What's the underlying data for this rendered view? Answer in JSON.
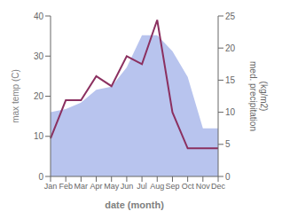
{
  "chart_data": {
    "type": "line",
    "categories": [
      "Jan",
      "Feb",
      "Mar",
      "Apr",
      "May",
      "Jun",
      "Jul",
      "Aug",
      "Sep",
      "Oct",
      "Nov",
      "Dec"
    ],
    "series": [
      {
        "type": "area",
        "axis": "y2",
        "color": "#b8c4ee",
        "values": [
          10.0,
          10.5,
          11.5,
          13.5,
          14.0,
          17.0,
          22.0,
          22.0,
          19.5,
          15.5,
          7.5,
          7.5
        ]
      },
      {
        "type": "line",
        "color": "#8B3060",
        "values": [
          9.5,
          19.0,
          19.0,
          25.0,
          22.5,
          30.0,
          28.0,
          39.0,
          16.0,
          7.0,
          7.0,
          7.0
        ]
      }
    ],
    "xlabel": "date (month)",
    "ylabel": "max temp (C)",
    "y2label": "med. precipitation\n(kg/m2)",
    "ylim": [
      0,
      40
    ],
    "yticks": [
      0,
      10,
      20,
      30,
      40
    ],
    "y2lim": [
      0,
      25
    ],
    "y2ticks": [
      0,
      5,
      10,
      15,
      20,
      25
    ],
    "grid": false
  }
}
